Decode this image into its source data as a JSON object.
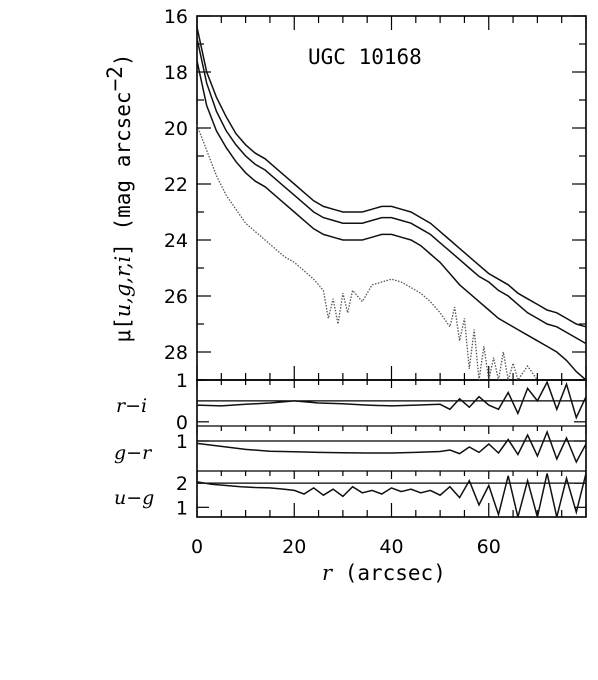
{
  "chart_data": [
    {
      "type": "line",
      "panel": "surface-brightness",
      "title": "UGC 10168",
      "ylabel_prefix": "μ[",
      "ylabel_vars": "u,g,r,i",
      "ylabel_suffix": "] (mag arcsec",
      "ylabel_exp": "−2",
      "ylabel_close": ")",
      "xlim": [
        0,
        80
      ],
      "ylim": [
        29,
        16
      ],
      "y_inverted": true,
      "yticks": [
        16,
        18,
        20,
        22,
        24,
        26,
        28
      ],
      "series": [
        {
          "band": "i",
          "style": "solid",
          "x": [
            0,
            2,
            4,
            6,
            8,
            10,
            12,
            14,
            16,
            18,
            20,
            22,
            24,
            26,
            28,
            30,
            32,
            34,
            36,
            38,
            40,
            42,
            44,
            46,
            48,
            50,
            52,
            54,
            56,
            58,
            60,
            62,
            64,
            66,
            68,
            70,
            72,
            74,
            76,
            78,
            80
          ],
          "y": [
            16.4,
            18.0,
            18.9,
            19.6,
            20.2,
            20.6,
            20.9,
            21.1,
            21.4,
            21.7,
            22.0,
            22.3,
            22.6,
            22.8,
            22.9,
            23.0,
            23.0,
            23.0,
            22.9,
            22.8,
            22.8,
            22.9,
            23.0,
            23.2,
            23.4,
            23.7,
            24.0,
            24.3,
            24.6,
            24.9,
            25.2,
            25.4,
            25.6,
            25.9,
            26.1,
            26.3,
            26.5,
            26.6,
            26.8,
            27.0,
            27.1
          ]
        },
        {
          "band": "r",
          "style": "solid",
          "x": [
            0,
            2,
            4,
            6,
            8,
            10,
            12,
            14,
            16,
            18,
            20,
            22,
            24,
            26,
            28,
            30,
            32,
            34,
            36,
            38,
            40,
            42,
            44,
            46,
            48,
            50,
            52,
            54,
            56,
            58,
            60,
            62,
            64,
            66,
            68,
            70,
            72,
            74,
            76,
            78,
            80
          ],
          "y": [
            16.8,
            18.4,
            19.4,
            20.1,
            20.6,
            21.0,
            21.3,
            21.5,
            21.8,
            22.1,
            22.4,
            22.7,
            23.0,
            23.2,
            23.3,
            23.4,
            23.4,
            23.4,
            23.3,
            23.2,
            23.2,
            23.3,
            23.4,
            23.6,
            23.8,
            24.1,
            24.4,
            24.7,
            25.0,
            25.3,
            25.5,
            25.8,
            26.0,
            26.3,
            26.6,
            26.8,
            27.0,
            27.1,
            27.3,
            27.5,
            27.7
          ]
        },
        {
          "band": "g",
          "style": "solid",
          "x": [
            0,
            2,
            4,
            6,
            8,
            10,
            12,
            14,
            16,
            18,
            20,
            22,
            24,
            26,
            28,
            30,
            32,
            34,
            36,
            38,
            40,
            42,
            44,
            46,
            48,
            50,
            52,
            54,
            56,
            58,
            60,
            62,
            64,
            66,
            68,
            70,
            72,
            74,
            76,
            78,
            80
          ],
          "y": [
            17.6,
            19.2,
            20.1,
            20.7,
            21.2,
            21.6,
            21.9,
            22.1,
            22.4,
            22.7,
            23.0,
            23.3,
            23.6,
            23.8,
            23.9,
            24.0,
            24.0,
            24.0,
            23.9,
            23.8,
            23.8,
            23.9,
            24.0,
            24.2,
            24.5,
            24.8,
            25.2,
            25.6,
            25.9,
            26.2,
            26.5,
            26.8,
            27.0,
            27.2,
            27.4,
            27.6,
            27.8,
            28.0,
            28.3,
            28.7,
            29.0
          ]
        },
        {
          "band": "u",
          "style": "dotted",
          "x": [
            0,
            2,
            4,
            6,
            8,
            10,
            12,
            14,
            16,
            18,
            20,
            22,
            24,
            26,
            27,
            28,
            29,
            30,
            31,
            32,
            34,
            36,
            38,
            40,
            42,
            44,
            46,
            48,
            50,
            52,
            53,
            54,
            55,
            56,
            57,
            58,
            59,
            60,
            61,
            62,
            63,
            64,
            65,
            66,
            68,
            70
          ],
          "y": [
            19.9,
            20.8,
            21.7,
            22.4,
            22.9,
            23.4,
            23.7,
            24.0,
            24.3,
            24.6,
            24.8,
            25.1,
            25.4,
            25.8,
            26.8,
            26.1,
            27.0,
            25.9,
            26.6,
            25.8,
            26.2,
            25.6,
            25.5,
            25.4,
            25.5,
            25.7,
            25.9,
            26.2,
            26.6,
            27.1,
            26.4,
            27.6,
            26.8,
            28.6,
            27.2,
            29.0,
            27.8,
            29.0,
            28.2,
            29.0,
            28.0,
            29.0,
            28.4,
            29.0,
            28.5,
            29.0
          ]
        }
      ]
    },
    {
      "type": "line",
      "panel": "r-i",
      "ylabel": "r−i",
      "xlim": [
        0,
        80
      ],
      "ylim": [
        -0.1,
        1.0
      ],
      "yticks": [
        0,
        1
      ],
      "reference_line": 0.5,
      "series": [
        {
          "x": [
            0,
            5,
            10,
            15,
            20,
            25,
            30,
            35,
            40,
            45,
            50,
            52,
            54,
            56,
            58,
            60,
            62,
            64,
            66,
            68,
            70,
            72,
            74,
            76,
            78,
            80
          ],
          "y": [
            0.4,
            0.38,
            0.42,
            0.45,
            0.5,
            0.45,
            0.43,
            0.4,
            0.38,
            0.4,
            0.42,
            0.3,
            0.55,
            0.35,
            0.6,
            0.4,
            0.3,
            0.7,
            0.2,
            0.8,
            0.5,
            0.95,
            0.3,
            0.9,
            0.1,
            0.6
          ]
        }
      ]
    },
    {
      "type": "line",
      "panel": "g-r",
      "ylabel": "g−r",
      "xlim": [
        0,
        80
      ],
      "ylim": [
        0.0,
        1.5
      ],
      "yticks": [
        1
      ],
      "reference_line": 1.0,
      "series": [
        {
          "x": [
            0,
            5,
            10,
            15,
            20,
            25,
            30,
            35,
            40,
            45,
            50,
            52,
            54,
            56,
            58,
            60,
            62,
            64,
            66,
            68,
            70,
            72,
            74,
            76,
            78,
            80
          ],
          "y": [
            0.92,
            0.82,
            0.72,
            0.66,
            0.64,
            0.62,
            0.61,
            0.6,
            0.6,
            0.62,
            0.65,
            0.7,
            0.58,
            0.8,
            0.62,
            0.9,
            0.6,
            1.05,
            0.55,
            1.2,
            0.5,
            1.3,
            0.4,
            1.1,
            0.3,
            0.9
          ]
        }
      ]
    },
    {
      "type": "line",
      "panel": "u-g",
      "ylabel": "u−g",
      "xlim": [
        0,
        80
      ],
      "ylim": [
        0.6,
        2.5
      ],
      "yticks": [
        1,
        2
      ],
      "reference_line": 2.0,
      "series": [
        {
          "x": [
            0,
            3,
            6,
            9,
            12,
            15,
            18,
            20,
            22,
            24,
            26,
            28,
            30,
            32,
            34,
            36,
            38,
            40,
            42,
            44,
            46,
            48,
            50,
            52,
            54,
            56,
            58,
            60,
            62,
            64,
            66,
            68,
            70,
            72,
            74,
            76,
            78,
            80
          ],
          "y": [
            2.05,
            1.95,
            1.9,
            1.85,
            1.82,
            1.8,
            1.75,
            1.7,
            1.55,
            1.8,
            1.5,
            1.75,
            1.45,
            1.85,
            1.6,
            1.7,
            1.55,
            1.8,
            1.65,
            1.75,
            1.6,
            1.7,
            1.5,
            1.85,
            1.4,
            2.1,
            1.1,
            1.9,
            0.7,
            2.3,
            0.6,
            2.1,
            0.6,
            2.4,
            0.6,
            2.2,
            0.8,
            2.4
          ]
        }
      ]
    },
    {
      "type": "axis",
      "panel": "x-axis",
      "xlabel_var": "r",
      "xlabel_rest": " (arcsec)",
      "xticks": [
        0,
        20,
        40,
        60
      ]
    }
  ]
}
